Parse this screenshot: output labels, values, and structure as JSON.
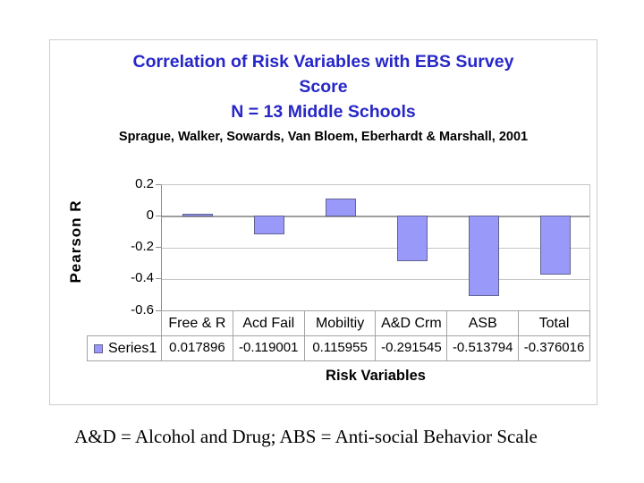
{
  "chart": {
    "title_lines": [
      "Correlation of Risk Variables with EBS Survey",
      "Score",
      "N = 13 Middle Schools"
    ],
    "subtitle": "Sprague, Walker, Sowards, Van Bloem, Eberhardt & Marshall, 2001",
    "y_axis_label": "Pearson R",
    "x_axis_label": "Risk Variables",
    "legend_label": "Series1"
  },
  "caption": "A&D = Alcohol and Drug; ABS = Anti-social Behavior Scale",
  "chart_data": {
    "type": "bar",
    "title": "Correlation of Risk Variables with EBS Survey Score N = 13 Middle Schools",
    "subtitle": "Sprague, Walker, Sowards, Van Bloem, Eberhardt & Marshall, 2001",
    "categories": [
      "Free & R",
      "Acd Fail",
      "Mobiltiy",
      "A&D Crm",
      "ASB",
      "Total"
    ],
    "series": [
      {
        "name": "Series1",
        "values": [
          0.017896,
          -0.119001,
          0.115955,
          -0.291545,
          -0.513794,
          -0.376016
        ]
      }
    ],
    "value_labels": [
      "0.017896",
      "-0.119001",
      "0.115955",
      "-0.291545",
      "-0.513794",
      "-0.376016"
    ],
    "xlabel": "Risk Variables",
    "ylabel": "Pearson R",
    "ylim": [
      -0.6,
      0.2
    ],
    "yticks": [
      0.2,
      0,
      -0.2,
      -0.4,
      -0.6
    ],
    "ytick_labels": [
      "0.2",
      "0",
      "-0.2",
      "-0.4",
      "-0.6"
    ],
    "grid": true,
    "legend_position": "bottom-left data table",
    "data_table_shown": true,
    "colors": {
      "bar_fill": "#9999fa",
      "bar_border": "#62628f",
      "title_text": "#2727c8",
      "gridline": "#c6c6c6",
      "zero_line": "#9e9e9e",
      "axis_line": "#8c8c8c",
      "table_border": "#a3a3a3",
      "frame_border": "#cdcdcd"
    }
  }
}
